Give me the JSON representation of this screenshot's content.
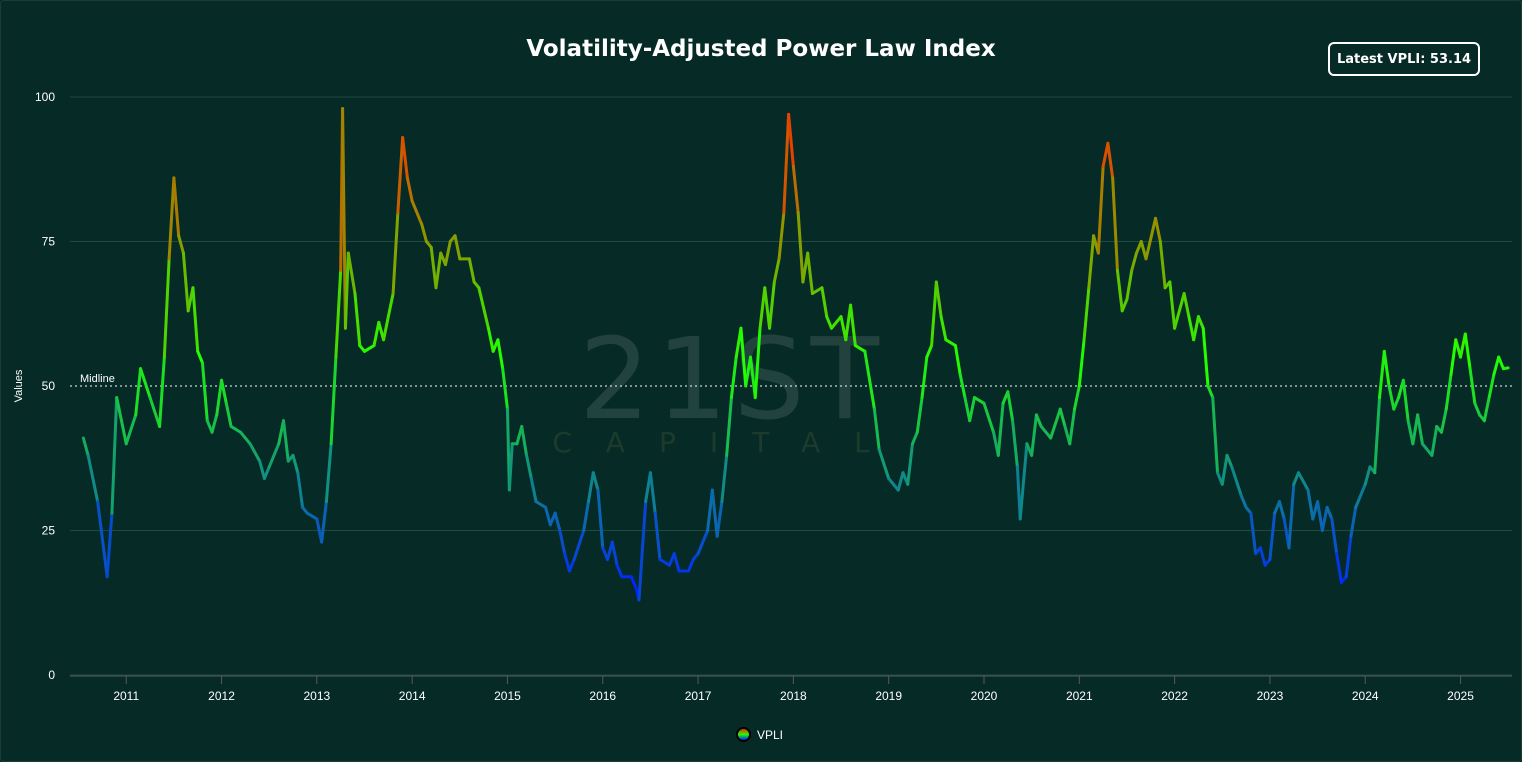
{
  "chart_data": {
    "type": "line",
    "title": "Volatility-Adjusted Power Law Index",
    "badge": "Latest VPLI: 53.14",
    "xlabel": "",
    "ylabel": "Values",
    "xlim": [
      2010.41,
      2025.54
    ],
    "ylim": [
      0,
      100
    ],
    "x_ticks": [
      "2011",
      "2012",
      "2013",
      "2014",
      "2015",
      "2016",
      "2017",
      "2018",
      "2019",
      "2020",
      "2021",
      "2022",
      "2023",
      "2024",
      "2025"
    ],
    "y_ticks": [
      "0",
      "25",
      "50",
      "75",
      "100"
    ],
    "grid": true,
    "midline": {
      "value": 50,
      "label": "Midline"
    },
    "legend": {
      "position": "bottom",
      "entries": [
        "VPLI"
      ]
    },
    "colors": {
      "low": "#0022ff",
      "mid": "#22ff00",
      "high": "#ff2a00",
      "background": "#062a25"
    },
    "watermark": "21ST CAPITAL",
    "series": [
      {
        "name": "VPLI",
        "x": [
          2010.55,
          2010.6,
          2010.7,
          2010.8,
          2010.85,
          2010.9,
          2011.0,
          2011.1,
          2011.15,
          2011.25,
          2011.35,
          2011.4,
          2011.45,
          2011.5,
          2011.55,
          2011.6,
          2011.65,
          2011.7,
          2011.75,
          2011.8,
          2011.85,
          2011.9,
          2011.95,
          2012.0,
          2012.05,
          2012.1,
          2012.2,
          2012.3,
          2012.4,
          2012.45,
          2012.5,
          2012.6,
          2012.65,
          2012.7,
          2012.75,
          2012.8,
          2012.85,
          2012.9,
          2013.0,
          2013.05,
          2013.1,
          2013.15,
          2013.2,
          2013.25,
          2013.27,
          2013.3,
          2013.33,
          2013.4,
          2013.45,
          2013.5,
          2013.6,
          2013.65,
          2013.7,
          2013.8,
          2013.85,
          2013.9,
          2013.95,
          2014.0,
          2014.1,
          2014.15,
          2014.2,
          2014.25,
          2014.3,
          2014.35,
          2014.4,
          2014.45,
          2014.5,
          2014.6,
          2014.65,
          2014.7,
          2014.8,
          2014.85,
          2014.9,
          2014.95,
          2015.0,
          2015.02,
          2015.05,
          2015.1,
          2015.15,
          2015.2,
          2015.25,
          2015.3,
          2015.4,
          2015.45,
          2015.5,
          2015.55,
          2015.6,
          2015.65,
          2015.7,
          2015.8,
          2015.85,
          2015.9,
          2015.95,
          2016.0,
          2016.05,
          2016.1,
          2016.15,
          2016.2,
          2016.3,
          2016.35,
          2016.38,
          2016.45,
          2016.5,
          2016.55,
          2016.6,
          2016.7,
          2016.75,
          2016.8,
          2016.9,
          2016.95,
          2017.0,
          2017.1,
          2017.15,
          2017.2,
          2017.25,
          2017.3,
          2017.35,
          2017.4,
          2017.45,
          2017.5,
          2017.55,
          2017.6,
          2017.65,
          2017.7,
          2017.75,
          2017.8,
          2017.85,
          2017.9,
          2017.95,
          2018.0,
          2018.05,
          2018.1,
          2018.15,
          2018.2,
          2018.3,
          2018.35,
          2018.4,
          2018.5,
          2018.55,
          2018.6,
          2018.65,
          2018.75,
          2018.85,
          2018.9,
          2019.0,
          2019.05,
          2019.1,
          2019.15,
          2019.2,
          2019.25,
          2019.3,
          2019.35,
          2019.4,
          2019.45,
          2019.5,
          2019.55,
          2019.6,
          2019.7,
          2019.75,
          2019.8,
          2019.85,
          2019.9,
          2020.0,
          2020.1,
          2020.15,
          2020.2,
          2020.25,
          2020.3,
          2020.35,
          2020.38,
          2020.45,
          2020.5,
          2020.55,
          2020.6,
          2020.7,
          2020.8,
          2020.85,
          2020.9,
          2020.95,
          2021.0,
          2021.05,
          2021.1,
          2021.15,
          2021.2,
          2021.25,
          2021.3,
          2021.35,
          2021.4,
          2021.45,
          2021.5,
          2021.55,
          2021.6,
          2021.65,
          2021.7,
          2021.8,
          2021.85,
          2021.9,
          2021.95,
          2022.0,
          2022.1,
          2022.15,
          2022.2,
          2022.25,
          2022.3,
          2022.35,
          2022.4,
          2022.45,
          2022.5,
          2022.55,
          2022.6,
          2022.7,
          2022.75,
          2022.8,
          2022.85,
          2022.9,
          2022.95,
          2023.0,
          2023.05,
          2023.1,
          2023.15,
          2023.2,
          2023.25,
          2023.3,
          2023.4,
          2023.45,
          2023.5,
          2023.55,
          2023.6,
          2023.65,
          2023.7,
          2023.75,
          2023.8,
          2023.85,
          2023.9,
          2024.0,
          2024.05,
          2024.1,
          2024.15,
          2024.2,
          2024.25,
          2024.3,
          2024.35,
          2024.4,
          2024.45,
          2024.5,
          2024.55,
          2024.6,
          2024.7,
          2024.75,
          2024.8,
          2024.85,
          2024.9,
          2024.95,
          2025.0,
          2025.05,
          2025.1,
          2025.15,
          2025.2,
          2025.25,
          2025.3,
          2025.35,
          2025.4,
          2025.45,
          2025.5
        ],
        "y": [
          41,
          38,
          30,
          17,
          28,
          48,
          40,
          45,
          53,
          48,
          43,
          55,
          72,
          86,
          76,
          73,
          63,
          67,
          56,
          54,
          44,
          42,
          45,
          51,
          47,
          43,
          42,
          40,
          37,
          34,
          36,
          40,
          44,
          37,
          38,
          35,
          29,
          28,
          27,
          23,
          30,
          40,
          55,
          70,
          98,
          60,
          73,
          66,
          57,
          56,
          57,
          61,
          58,
          66,
          80,
          93,
          86,
          82,
          78,
          75,
          74,
          67,
          73,
          71,
          75,
          76,
          72,
          72,
          68,
          67,
          60,
          56,
          58,
          53,
          46,
          32,
          40,
          40,
          43,
          38,
          34,
          30,
          29,
          26,
          28,
          25,
          21,
          18,
          20,
          25,
          30,
          35,
          32,
          22,
          20,
          23,
          19,
          17,
          17,
          15,
          13,
          30,
          35,
          28,
          20,
          19,
          21,
          18,
          18,
          20,
          21,
          25,
          32,
          24,
          30,
          38,
          48,
          55,
          60,
          50,
          55,
          48,
          60,
          67,
          60,
          68,
          72,
          80,
          97,
          88,
          80,
          68,
          73,
          66,
          67,
          62,
          60,
          62,
          58,
          64,
          57,
          56,
          46,
          39,
          34,
          33,
          32,
          35,
          33,
          40,
          42,
          48,
          55,
          57,
          68,
          62,
          58,
          57,
          52,
          48,
          44,
          48,
          47,
          42,
          38,
          47,
          49,
          44,
          36,
          27,
          40,
          38,
          45,
          43,
          41,
          46,
          43,
          40,
          46,
          50,
          58,
          67,
          76,
          73,
          88,
          92,
          86,
          70,
          63,
          65,
          70,
          73,
          75,
          72,
          79,
          75,
          67,
          68,
          60,
          66,
          62,
          58,
          62,
          60,
          50,
          48,
          35,
          33,
          38,
          36,
          31,
          29,
          28,
          21,
          22,
          19,
          20,
          28,
          30,
          27,
          22,
          33,
          35,
          32,
          27,
          30,
          25,
          29,
          27,
          21,
          16,
          17,
          24,
          29,
          33,
          36,
          35,
          48,
          56,
          50,
          46,
          48,
          51,
          44,
          40,
          45,
          40,
          38,
          43,
          42,
          46,
          52,
          58,
          55,
          59,
          53,
          47,
          45,
          44,
          48,
          52,
          55,
          53,
          53.14
        ]
      }
    ]
  }
}
